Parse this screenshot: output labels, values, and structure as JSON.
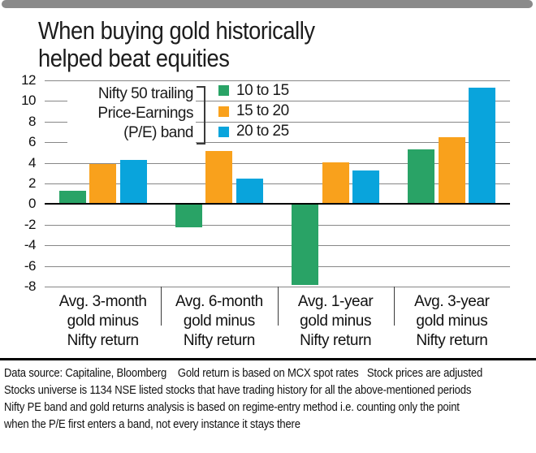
{
  "top_bar": {
    "color": "#8a8a8a"
  },
  "title": {
    "line1": "When buying gold historically",
    "line2": "helped beat equities"
  },
  "chart_data": {
    "type": "bar",
    "title": "When buying gold historically helped beat equities",
    "xlabel": "",
    "ylabel": "",
    "ylim": [
      -8,
      12
    ],
    "y_ticks": [
      12,
      10,
      8,
      6,
      4,
      2,
      0,
      -2,
      -4,
      -6,
      -8
    ],
    "grid": true,
    "legend_position": "top-left",
    "legend_title_lines": [
      "Nifty 50 trailing",
      "Price-Earnings",
      "(P/E) band"
    ],
    "categories": [
      "Avg. 3-month gold minus Nifty return",
      "Avg. 6-month gold minus Nifty return",
      "Avg. 1-year gold minus Nifty return",
      "Avg. 3-year gold minus Nifty return"
    ],
    "category_lines": [
      [
        "Avg. 3-month",
        "gold minus",
        "Nifty return"
      ],
      [
        "Avg. 6-month",
        "gold minus",
        "Nifty return"
      ],
      [
        "Avg. 1-year",
        "gold minus",
        "Nifty return"
      ],
      [
        "Avg. 3-year",
        "gold minus",
        "Nifty return"
      ]
    ],
    "series": [
      {
        "name": "10 to 15",
        "color": "#29A366",
        "values": [
          1.2,
          -2.2,
          -7.8,
          5.2
        ]
      },
      {
        "name": "15 to 20",
        "color": "#F9A11C",
        "values": [
          3.8,
          5.1,
          4.0,
          6.4
        ]
      },
      {
        "name": "20 to 25",
        "color": "#09A4DC",
        "values": [
          4.2,
          2.4,
          3.2,
          11.2
        ]
      }
    ]
  },
  "footer": {
    "lines": [
      "Data source: Capitaline, Bloomberg    Gold return is based on MCX spot rates   Stock prices are adjusted",
      "Stocks universe is 1134 NSE listed stocks that have trading history for all the above-mentioned periods",
      "Nifty PE band and gold returns analysis is based on regime-entry method i.e. counting only the point",
      "when the P/E first enters a band, not every instance it stays there"
    ]
  },
  "colors": {
    "grid": "#878787",
    "zero_line": "#000000",
    "green": "#29A366",
    "orange": "#F9A11C",
    "blue": "#09A4DC"
  }
}
